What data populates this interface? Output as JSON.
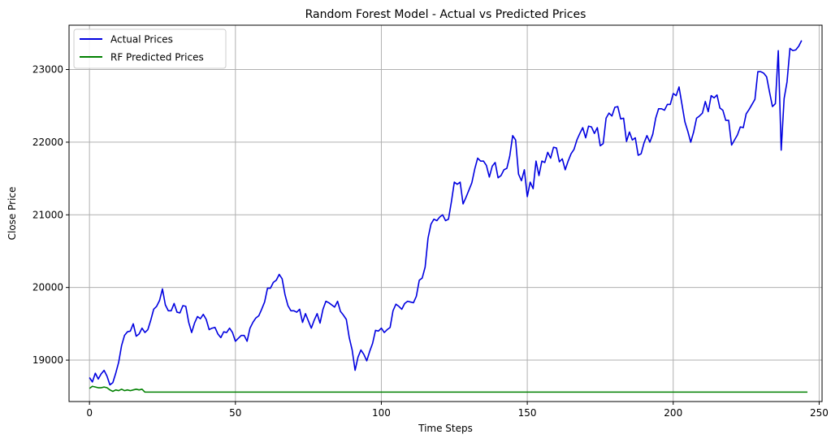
{
  "chart_data": {
    "type": "line",
    "title": "Random Forest Model - Actual vs Predicted Prices",
    "xlabel": "Time Steps",
    "ylabel": "Close Price",
    "xlim": [
      -7,
      251
    ],
    "ylim": [
      18430,
      23610
    ],
    "xticks": [
      0,
      50,
      100,
      150,
      200,
      250
    ],
    "yticks": [
      19000,
      20000,
      21000,
      22000,
      23000
    ],
    "grid": true,
    "legend": "top-left",
    "series": [
      {
        "name": "Actual Prices",
        "color": "#0000e0",
        "x_start": 0,
        "values": [
          18760,
          18700,
          18820,
          18740,
          18810,
          18860,
          18780,
          18660,
          18690,
          18820,
          18970,
          19200,
          19340,
          19390,
          19400,
          19500,
          19330,
          19360,
          19440,
          19380,
          19420,
          19550,
          19700,
          19740,
          19820,
          19980,
          19760,
          19680,
          19680,
          19780,
          19660,
          19650,
          19750,
          19740,
          19520,
          19380,
          19510,
          19600,
          19570,
          19630,
          19560,
          19420,
          19440,
          19450,
          19360,
          19310,
          19390,
          19380,
          19440,
          19380,
          19260,
          19300,
          19340,
          19340,
          19260,
          19440,
          19520,
          19580,
          19610,
          19700,
          19800,
          19990,
          19990,
          20070,
          20100,
          20180,
          20120,
          19900,
          19750,
          19680,
          19680,
          19660,
          19700,
          19520,
          19640,
          19540,
          19440,
          19550,
          19640,
          19510,
          19700,
          19810,
          19790,
          19760,
          19730,
          19810,
          19670,
          19620,
          19560,
          19310,
          19140,
          18860,
          19040,
          19140,
          19080,
          18990,
          19120,
          19230,
          19410,
          19400,
          19440,
          19380,
          19420,
          19450,
          19680,
          19770,
          19740,
          19700,
          19780,
          19810,
          19800,
          19790,
          19880,
          20100,
          20130,
          20280,
          20680,
          20870,
          20940,
          20920,
          20970,
          21000,
          20920,
          20940,
          21180,
          21450,
          21420,
          21450,
          21150,
          21240,
          21340,
          21440,
          21630,
          21780,
          21740,
          21740,
          21680,
          21520,
          21670,
          21720,
          21510,
          21540,
          21620,
          21640,
          21810,
          22090,
          22030,
          21560,
          21470,
          21620,
          21250,
          21450,
          21360,
          21740,
          21540,
          21740,
          21720,
          21860,
          21780,
          21930,
          21920,
          21730,
          21770,
          21620,
          21740,
          21840,
          21900,
          22030,
          22120,
          22200,
          22060,
          22220,
          22210,
          22120,
          22200,
          21950,
          21980,
          22330,
          22400,
          22360,
          22480,
          22490,
          22320,
          22330,
          22010,
          22140,
          22030,
          22060,
          21820,
          21840,
          21990,
          22090,
          22000,
          22110,
          22330,
          22460,
          22460,
          22440,
          22520,
          22520,
          22670,
          22640,
          22760,
          22520,
          22280,
          22150,
          22000,
          22140,
          22330,
          22360,
          22400,
          22560,
          22420,
          22640,
          22610,
          22650,
          22470,
          22440,
          22300,
          22300,
          21960,
          22030,
          22100,
          22210,
          22200,
          22390,
          22450,
          22520,
          22590,
          22970,
          22970,
          22950,
          22900,
          22690,
          22490,
          22530,
          23260,
          21890,
          22600,
          22830,
          23290,
          23260,
          23270,
          23320,
          23400
        ]
      },
      {
        "name": "RF Predicted Prices",
        "color": "#008000",
        "x_start": 0,
        "values": [
          18610,
          18640,
          18630,
          18620,
          18620,
          18630,
          18620,
          18590,
          18570,
          18590,
          18580,
          18600,
          18580,
          18590,
          18580,
          18590,
          18600,
          18590,
          18600,
          18560,
          18560,
          18560,
          18560,
          18560,
          18560,
          18560,
          18560,
          18560,
          18560,
          18560,
          18560,
          18560,
          18560,
          18560,
          18560,
          18560,
          18560,
          18560,
          18560,
          18560,
          18560,
          18560,
          18560,
          18560,
          18560,
          18560,
          18560,
          18560,
          18560,
          18560,
          18560,
          18560,
          18560,
          18560,
          18560,
          18560,
          18560,
          18560,
          18560,
          18560,
          18560,
          18560,
          18560,
          18560,
          18560,
          18560,
          18560,
          18560,
          18560,
          18560,
          18560,
          18560,
          18560,
          18560,
          18560,
          18560,
          18560,
          18560,
          18560,
          18560,
          18560,
          18560,
          18560,
          18560,
          18560,
          18560,
          18560,
          18560,
          18560,
          18560,
          18560,
          18560,
          18560,
          18560,
          18560,
          18560,
          18560,
          18560,
          18560,
          18560,
          18560,
          18560,
          18560,
          18560,
          18560,
          18560,
          18560,
          18560,
          18560,
          18560,
          18560,
          18560,
          18560,
          18560,
          18560,
          18560,
          18560,
          18560,
          18560,
          18560,
          18560,
          18560,
          18560,
          18560,
          18560,
          18560,
          18560,
          18560,
          18560,
          18560,
          18560,
          18560,
          18560,
          18560,
          18560,
          18560,
          18560,
          18560,
          18560,
          18560,
          18560,
          18560,
          18560,
          18560,
          18560,
          18560,
          18560,
          18560,
          18560,
          18560,
          18560,
          18560,
          18560,
          18560,
          18560,
          18560,
          18560,
          18560,
          18560,
          18560,
          18560,
          18560,
          18560,
          18560,
          18560,
          18560,
          18560,
          18560,
          18560,
          18560,
          18560,
          18560,
          18560,
          18560,
          18560,
          18560,
          18560,
          18560,
          18560,
          18560,
          18560,
          18560,
          18560,
          18560,
          18560,
          18560,
          18560,
          18560,
          18560,
          18560,
          18560,
          18560,
          18560,
          18560,
          18560,
          18560,
          18560,
          18560,
          18560,
          18560,
          18560,
          18560,
          18560,
          18560,
          18560,
          18560,
          18560,
          18560,
          18560,
          18560,
          18560,
          18560,
          18560,
          18560,
          18560,
          18560,
          18560,
          18560,
          18560,
          18560,
          18560,
          18560,
          18560,
          18560,
          18560,
          18560,
          18560,
          18560,
          18560,
          18560,
          18560,
          18560,
          18560,
          18560,
          18560,
          18560,
          18560,
          18560,
          18560,
          18560,
          18560,
          18560,
          18560,
          18560,
          18560,
          18560,
          18560
        ]
      }
    ]
  }
}
